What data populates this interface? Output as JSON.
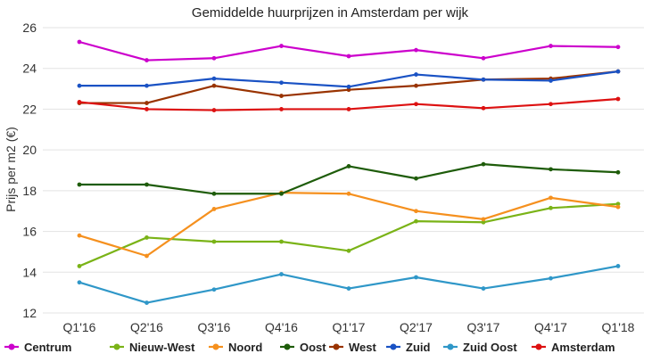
{
  "chart_data": {
    "type": "line",
    "title": "Gemiddelde huurprijzen in Amsterdam per wijk",
    "xlabel": "",
    "ylabel": "Prijs per m2 (€)",
    "ylim": [
      12,
      26
    ],
    "yticks": [
      12,
      14,
      16,
      18,
      20,
      22,
      24,
      26
    ],
    "grid": true,
    "legend_position": "bottom",
    "categories": [
      "Q1'16",
      "Q2'16",
      "Q3'16",
      "Q4'16",
      "Q1'17",
      "Q2'17",
      "Q3'17",
      "Q4'17",
      "Q1'18"
    ],
    "series": [
      {
        "name": "Centrum",
        "color": "#cc00cc",
        "values": [
          25.3,
          24.4,
          24.5,
          25.1,
          24.6,
          24.9,
          24.5,
          25.1,
          25.05
        ]
      },
      {
        "name": "Nieuw-West",
        "color": "#7ab317",
        "values": [
          14.3,
          15.7,
          15.5,
          15.5,
          15.05,
          16.5,
          16.45,
          17.15,
          17.35
        ]
      },
      {
        "name": "Noord",
        "color": "#f5901e",
        "values": [
          15.8,
          14.8,
          17.1,
          17.9,
          17.85,
          17.0,
          16.6,
          17.65,
          17.2
        ]
      },
      {
        "name": "Oost",
        "color": "#1e5c0a",
        "values": [
          18.3,
          18.3,
          17.85,
          17.85,
          19.2,
          18.6,
          19.3,
          19.05,
          18.9
        ]
      },
      {
        "name": "West",
        "color": "#993300",
        "values": [
          22.3,
          22.3,
          23.15,
          22.65,
          22.95,
          23.15,
          23.45,
          23.5,
          23.85
        ]
      },
      {
        "name": "Zuid",
        "color": "#1a52c4",
        "values": [
          23.15,
          23.15,
          23.5,
          23.3,
          23.1,
          23.7,
          23.45,
          23.4,
          23.85
        ]
      },
      {
        "name": "Zuid Oost",
        "color": "#2f97c8",
        "values": [
          13.5,
          12.5,
          13.15,
          13.9,
          13.2,
          13.75,
          13.2,
          13.7,
          14.3
        ]
      },
      {
        "name": "Amsterdam",
        "color": "#dd1111",
        "values": [
          22.35,
          22.0,
          21.95,
          22.0,
          22.0,
          22.25,
          22.05,
          22.25,
          22.5
        ]
      }
    ]
  }
}
